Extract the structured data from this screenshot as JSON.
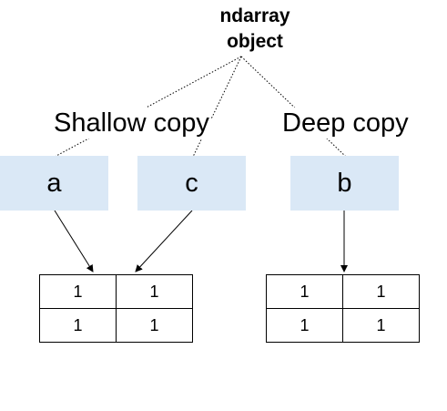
{
  "title": {
    "line1": "ndarray",
    "line2": "object"
  },
  "headings": {
    "shallow": "Shallow copy",
    "deep": "Deep copy"
  },
  "variables": {
    "a": "a",
    "c": "c",
    "b": "b"
  },
  "arrays": {
    "shallow": {
      "rows": [
        [
          "1",
          "1"
        ],
        [
          "1",
          "1"
        ]
      ]
    },
    "deep": {
      "rows": [
        [
          "1",
          "1"
        ],
        [
          "1",
          "1"
        ]
      ]
    }
  },
  "colors": {
    "box_fill": "#dae8f6",
    "line": "#000000"
  }
}
